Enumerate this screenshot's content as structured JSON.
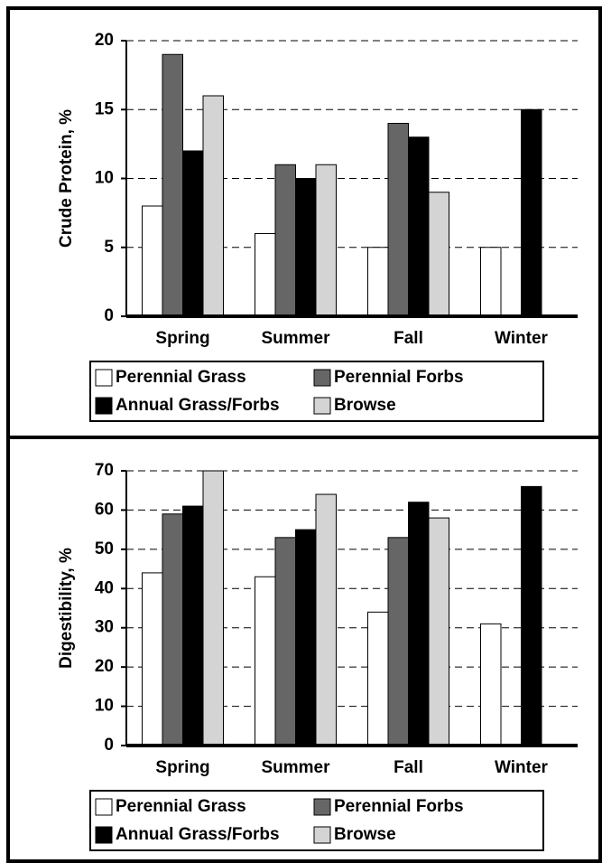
{
  "chart_data": [
    {
      "type": "bar",
      "y_label": "Crude Protein, %",
      "categories": [
        "Spring",
        "Summer",
        "Fall",
        "Winter"
      ],
      "series": [
        {
          "name": "Perennial Grass",
          "color": "#ffffff",
          "values": [
            8,
            6,
            5,
            5
          ]
        },
        {
          "name": "Perennial Forbs",
          "color": "#666666",
          "values": [
            19,
            11,
            14,
            null
          ]
        },
        {
          "name": "Annual Grass/Forbs",
          "color": "#000000",
          "values": [
            12,
            10,
            13,
            15
          ]
        },
        {
          "name": "Browse",
          "color": "#d4d4d4",
          "values": [
            16,
            11,
            9,
            null
          ]
        }
      ],
      "ylim": [
        0,
        20
      ],
      "yticks": [
        0,
        5,
        10,
        15,
        20
      ],
      "grid": true
    },
    {
      "type": "bar",
      "y_label": "Digestibility, %",
      "categories": [
        "Spring",
        "Summer",
        "Fall",
        "Winter"
      ],
      "series": [
        {
          "name": "Perennial Grass",
          "color": "#ffffff",
          "values": [
            44,
            43,
            34,
            31
          ]
        },
        {
          "name": "Perennial Forbs",
          "color": "#666666",
          "values": [
            59,
            53,
            53,
            null
          ]
        },
        {
          "name": "Annual Grass/Forbs",
          "color": "#000000",
          "values": [
            61,
            55,
            62,
            66
          ]
        },
        {
          "name": "Browse",
          "color": "#d4d4d4",
          "values": [
            70,
            64,
            58,
            null
          ]
        }
      ],
      "ylim": [
        0,
        70
      ],
      "yticks": [
        0,
        10,
        20,
        30,
        40,
        50,
        60,
        70
      ],
      "grid": true
    }
  ]
}
